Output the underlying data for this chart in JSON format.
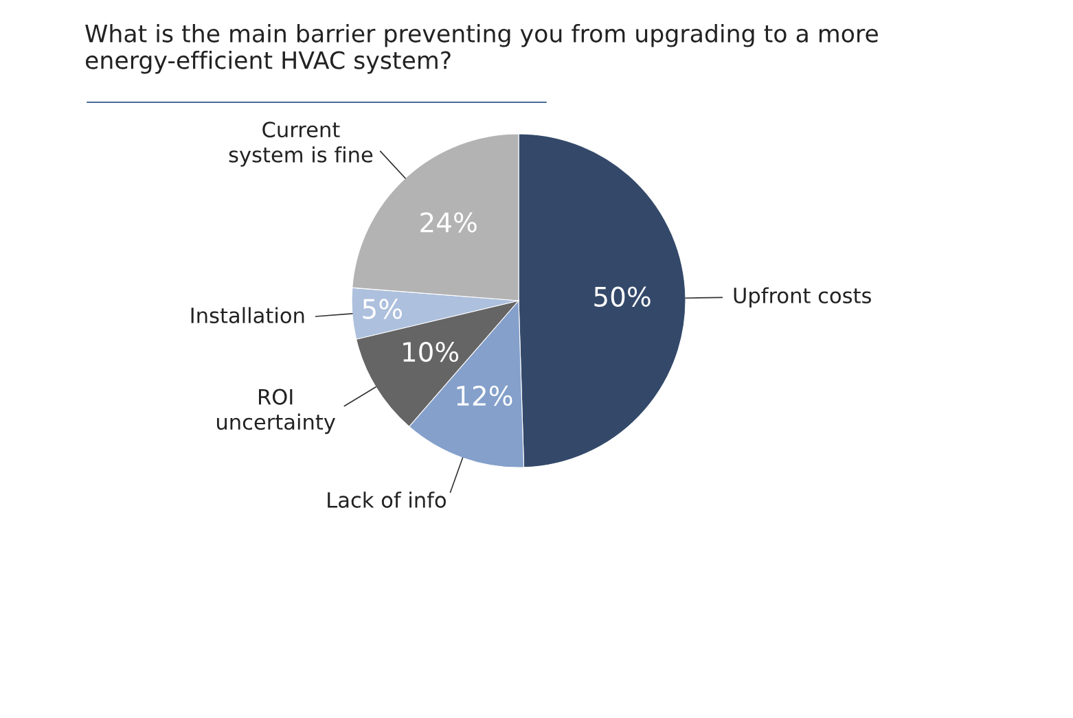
{
  "chart_data": {
    "type": "pie",
    "title": "What is the main barrier preventing you from upgrading to a more\nenergy-efficient HVAC system?",
    "categories": [
      "Upfront costs",
      "Lack of info",
      "ROI\nuncertainty",
      "Installation",
      "Current\nsystem is fine"
    ],
    "values": [
      50,
      12,
      10,
      5,
      24
    ],
    "value_labels": [
      "50%",
      "12%",
      "10%",
      "5%",
      "24%"
    ],
    "colors": [
      "#34496a",
      "#84a0cb",
      "#656565",
      "#adc0dd",
      "#b3b3b3"
    ],
    "legend": false
  }
}
